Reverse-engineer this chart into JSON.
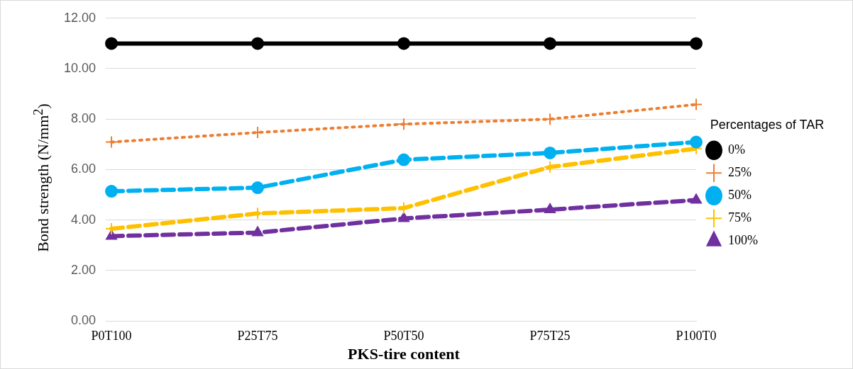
{
  "chart_data": {
    "type": "line",
    "xlabel": "PKS-tire content",
    "ylabel": "Bond strength (N/mm$^{2}$)",
    "legend_title": "Percentages of TAR",
    "categories": [
      "P0T100",
      "P25T75",
      "P50T50",
      "P75T25",
      "P100T0"
    ],
    "ylim": [
      0,
      12
    ],
    "yticks": [
      {
        "value": 0,
        "label": "0.00"
      },
      {
        "value": 2,
        "label": "2.00"
      },
      {
        "value": 4,
        "label": "4.00"
      },
      {
        "value": 6,
        "label": "6.00"
      },
      {
        "value": 8,
        "label": "8.00"
      },
      {
        "value": 10,
        "label": "10.00"
      },
      {
        "value": 12,
        "label": "12.00"
      }
    ],
    "grid": "y",
    "legend": "right",
    "series": [
      {
        "name": "0%",
        "color": "#000000",
        "marker": "circle",
        "line_style": "solid",
        "values": [
          11.0,
          11.0,
          11.0,
          11.0,
          11.0
        ]
      },
      {
        "name": "25%",
        "color": "#ed7d31",
        "marker": "cross",
        "line_style": "dotted",
        "values": [
          7.09,
          7.47,
          7.8,
          8.0,
          8.58
        ]
      },
      {
        "name": "50%",
        "color": "#00b0f0",
        "marker": "circle",
        "line_style": "dashed",
        "values": [
          5.14,
          5.28,
          6.39,
          6.66,
          7.09
        ]
      },
      {
        "name": "75%",
        "color": "#ffc000",
        "marker": "cross",
        "line_style": "dashed",
        "values": [
          3.65,
          4.26,
          4.47,
          6.1,
          6.83
        ]
      },
      {
        "name": "100%",
        "color": "#7030a0",
        "marker": "triangle",
        "line_style": "dashed",
        "values": [
          3.36,
          3.5,
          4.06,
          4.41,
          4.79
        ]
      }
    ]
  }
}
